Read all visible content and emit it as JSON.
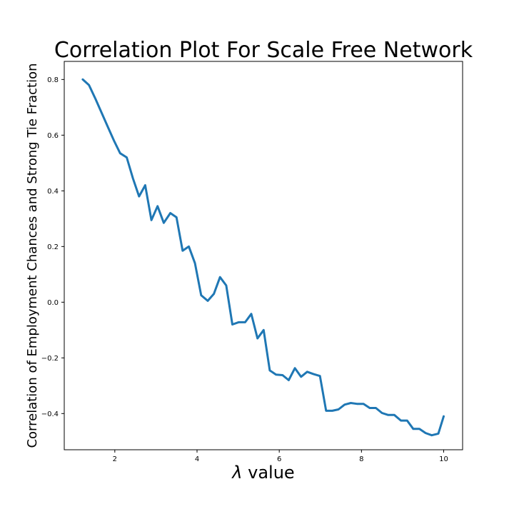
{
  "chart_data": {
    "type": "line",
    "title": "Correlation Plot For Scale Free Network",
    "xlabel_symbol": "λ",
    "xlabel_text": " value",
    "ylabel": "Correlation of Employment Chances and Strong Tie Fraction",
    "xlim": [
      0.77,
      10.46
    ],
    "ylim": [
      -0.53,
      0.865
    ],
    "xticks": [
      2,
      4,
      6,
      8,
      10
    ],
    "xtick_labels": [
      "2",
      "4",
      "6",
      "8",
      "10"
    ],
    "yticks": [
      -0.4,
      -0.2,
      0.0,
      0.2,
      0.4,
      0.6,
      0.8
    ],
    "ytick_labels": [
      "−0.4",
      "−0.2",
      "0.0",
      "0.2",
      "0.4",
      "0.6",
      "0.8"
    ],
    "grid": false,
    "series": [
      {
        "color": "#1f77b4",
        "x": [
          1.22,
          1.37,
          1.53,
          1.68,
          1.83,
          1.98,
          2.13,
          2.29,
          2.44,
          2.59,
          2.74,
          2.89,
          3.04,
          3.19,
          3.35,
          3.5,
          3.65,
          3.8,
          3.95,
          4.1,
          4.26,
          4.41,
          4.56,
          4.71,
          4.86,
          5.01,
          5.17,
          5.32,
          5.47,
          5.62,
          5.77,
          5.92,
          6.08,
          6.23,
          6.38,
          6.53,
          6.68,
          6.83,
          6.99,
          7.14,
          7.29,
          7.44,
          7.59,
          7.74,
          7.89,
          8.05,
          8.2,
          8.35,
          8.5,
          8.65,
          8.8,
          8.96,
          9.11,
          9.26,
          9.41,
          9.56,
          9.71,
          9.87,
          10.0
        ],
        "y": [
          0.8,
          0.78,
          0.73,
          0.68,
          0.63,
          0.58,
          0.535,
          0.52,
          0.445,
          0.38,
          0.42,
          0.295,
          0.345,
          0.285,
          0.32,
          0.305,
          0.185,
          0.2,
          0.14,
          0.025,
          0.005,
          0.03,
          0.09,
          0.06,
          -0.08,
          -0.072,
          -0.072,
          -0.042,
          -0.13,
          -0.1,
          -0.245,
          -0.26,
          -0.262,
          -0.28,
          -0.237,
          -0.268,
          -0.25,
          -0.258,
          -0.265,
          -0.39,
          -0.39,
          -0.385,
          -0.368,
          -0.362,
          -0.365,
          -0.365,
          -0.38,
          -0.38,
          -0.398,
          -0.405,
          -0.405,
          -0.425,
          -0.425,
          -0.455,
          -0.455,
          -0.47,
          -0.478,
          -0.472,
          -0.41
        ]
      }
    ]
  }
}
